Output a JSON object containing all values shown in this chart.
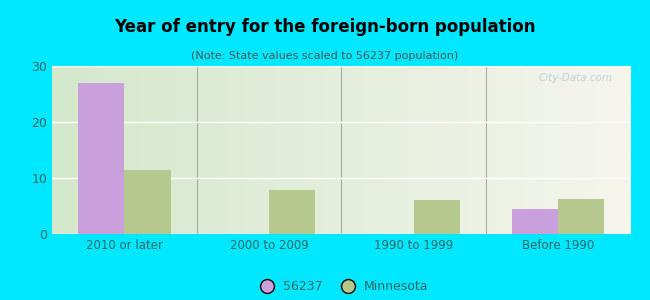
{
  "title": "Year of entry for the foreign-born population",
  "subtitle": "(Note: State values scaled to 56237 population)",
  "categories": [
    "2010 or later",
    "2000 to 2009",
    "1990 to 1999",
    "Before 1990"
  ],
  "values_56237": [
    27,
    0,
    0,
    4.5
  ],
  "values_minnesota": [
    11.5,
    7.8,
    6.0,
    6.3
  ],
  "color_56237": "#c9a0dc",
  "color_minnesota": "#b5c98e",
  "background_outer": "#00e8ff",
  "background_inner_left": "#d4e8cc",
  "background_inner_right": "#f5f5ec",
  "ylim": [
    0,
    30
  ],
  "yticks": [
    0,
    10,
    20,
    30
  ],
  "bar_width": 0.32,
  "legend_label_56237": "56237",
  "legend_label_minnesota": "Minnesota",
  "watermark": "City-Data.com",
  "tick_color": "#336666",
  "subtitle_color": "#555555",
  "divider_color": "#aaaaaa"
}
